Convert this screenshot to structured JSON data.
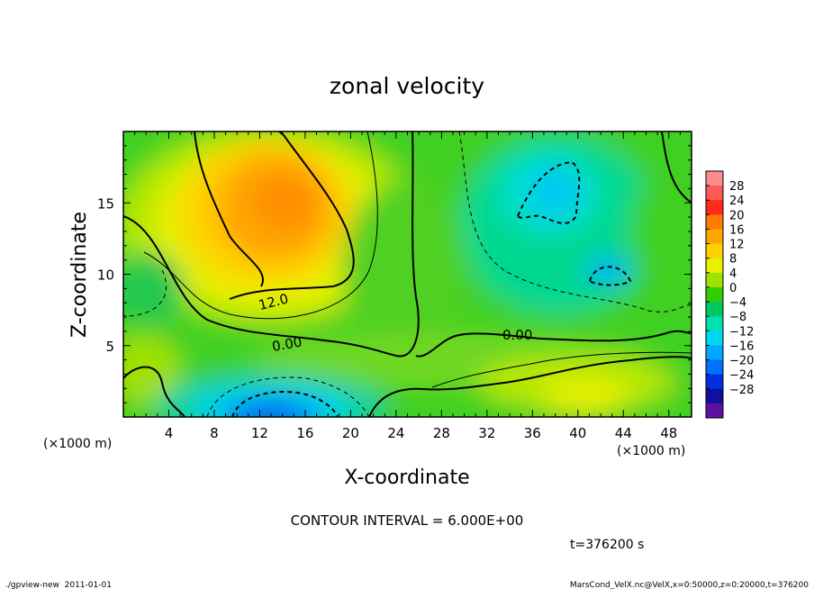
{
  "chart_data": {
    "type": "heatmap",
    "title": "zonal velocity",
    "xlabel": "X-coordinate",
    "ylabel": "Z-coordinate",
    "x_unit": "(×1000 m)",
    "y_unit": "(×1000 m)",
    "xlim": [
      0,
      50
    ],
    "ylim": [
      0,
      20
    ],
    "x_ticks": [
      4,
      8,
      12,
      16,
      20,
      24,
      28,
      32,
      36,
      40,
      44,
      48
    ],
    "y_ticks": [
      5,
      10,
      15
    ],
    "colorbar": {
      "labels": [
        "28",
        "24",
        "20",
        "16",
        "12",
        "8",
        "4",
        "0",
        "−4",
        "−8",
        "−12",
        "−16",
        "−20",
        "−24",
        "−28"
      ],
      "colors": [
        "#ff8c8c",
        "#ff5a5a",
        "#ff2a1a",
        "#ff7a00",
        "#ffa500",
        "#ffd000",
        "#e8f000",
        "#a0e000",
        "#30d000",
        "#00c860",
        "#00e0b0",
        "#00d8f0",
        "#00a8ff",
        "#0070ff",
        "#0030e0",
        "#1010a0",
        "#6010a0"
      ]
    },
    "contour_labels": [
      "12.0",
      "0.00",
      "0.00"
    ],
    "contour_interval": "CONTOUR INTERVAL = 6.000E+00",
    "time": "t=376200 s"
  },
  "footer": {
    "left": "./gpview-new  2011-01-01",
    "right": "MarsCond_VelX.nc@VelX,x=0:50000,z=0:20000,t=376200"
  }
}
